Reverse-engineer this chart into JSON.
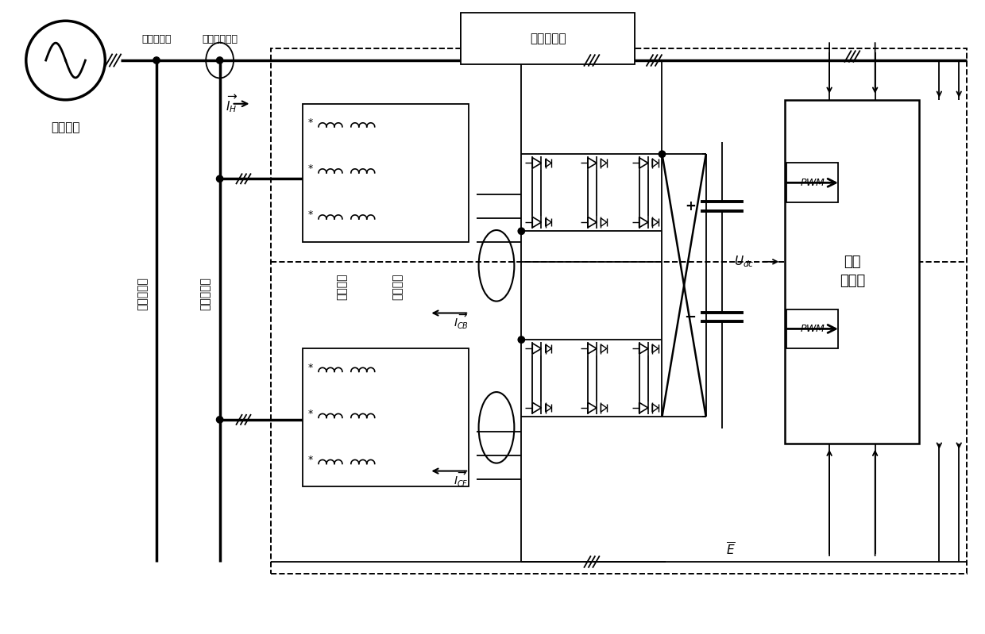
{
  "bg_color": "#ffffff",
  "fig_width": 12.4,
  "fig_height": 7.99,
  "labels": {
    "san_xiang": "三相电网",
    "qian_xiang": "前向组母线",
    "hou_xiang": "后向组母线",
    "fei_xian": "非线性负载",
    "gong_mo": "共模电感",
    "bing_wang": "并网电感",
    "dan_yuan": "单元\n控制器",
    "wang_ce": "网侧补偿点",
    "fu_zai": "负载侧补偿点"
  }
}
